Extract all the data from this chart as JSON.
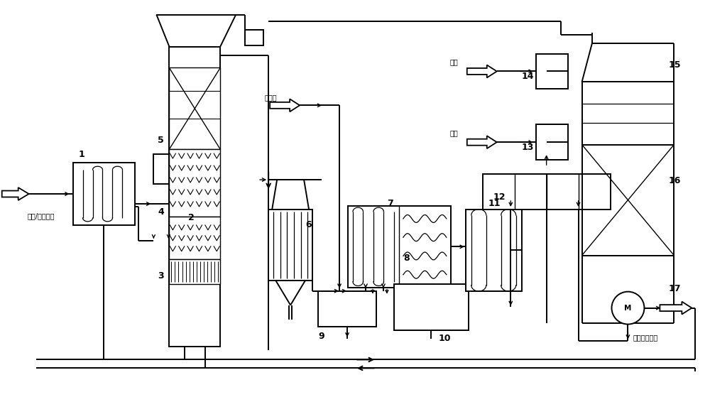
{
  "bg_color": "#ffffff",
  "lc": "#1a1a1a",
  "inlet_label": "烧结/球团烟气",
  "water_label": "工艺水",
  "ammonia_label": "氨气",
  "fuel_label": "燃气",
  "outlet_label": "净烟气去烟囱"
}
